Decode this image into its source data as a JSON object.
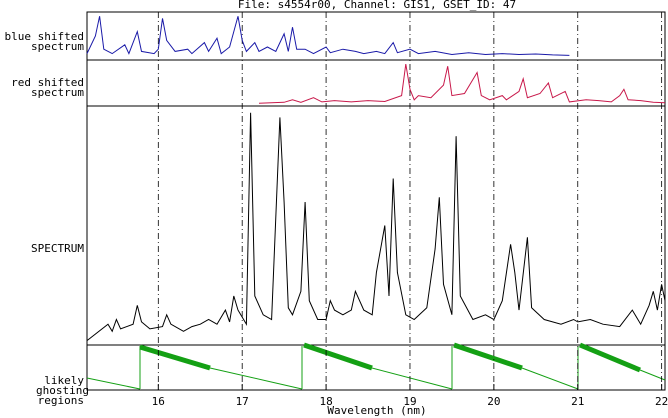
{
  "chart_data": {
    "type": "line",
    "title": "File: s4554r00,   Channel: GIS1, GSET_ID: 47",
    "x_label": "Wavelength (nm)",
    "annotations": [
      "likely ghosting regions"
    ],
    "xlim": [
      15.15,
      22.04
    ],
    "xticks": [
      16,
      17,
      18,
      19,
      20,
      21,
      22
    ],
    "ylim": [
      0,
      100
    ],
    "grid": true,
    "series": [
      {
        "name": "blue shifted spectrum",
        "color": "#1a1aa8",
        "x": [
          15.15,
          15.25,
          15.3,
          15.35,
          15.45,
          15.6,
          15.65,
          15.75,
          15.8,
          15.95,
          16.0,
          16.05,
          16.1,
          16.2,
          16.35,
          16.4,
          16.55,
          16.6,
          16.7,
          16.75,
          16.85,
          16.95,
          17.0,
          17.05,
          17.15,
          17.2,
          17.3,
          17.4,
          17.5,
          17.55,
          17.6,
          17.65,
          17.75,
          17.85,
          18.0,
          18.05,
          18.2,
          18.35,
          18.45,
          18.6,
          18.7,
          18.8,
          18.85,
          19.0,
          19.1,
          19.3,
          19.5,
          19.7,
          19.9,
          20.1,
          20.3,
          20.5,
          20.7,
          20.9
        ],
        "values": [
          10,
          50,
          95,
          20,
          10,
          30,
          10,
          60,
          15,
          10,
          20,
          90,
          40,
          15,
          20,
          10,
          35,
          15,
          45,
          10,
          25,
          95,
          40,
          15,
          35,
          15,
          25,
          15,
          55,
          15,
          70,
          20,
          20,
          10,
          25,
          12,
          20,
          15,
          10,
          15,
          10,
          35,
          12,
          20,
          10,
          15,
          8,
          12,
          8,
          10,
          8,
          9,
          7,
          6
        ]
      },
      {
        "name": "red shifted spectrum",
        "color": "#c8184a",
        "x": [
          17.2,
          17.5,
          17.6,
          17.7,
          17.85,
          17.95,
          18.1,
          18.3,
          18.5,
          18.7,
          18.9,
          18.95,
          19.0,
          19.05,
          19.1,
          19.25,
          19.4,
          19.45,
          19.5,
          19.65,
          19.8,
          19.85,
          19.95,
          20.1,
          20.15,
          20.3,
          20.35,
          20.4,
          20.55,
          20.65,
          20.7,
          20.85,
          20.9,
          21.1,
          21.25,
          21.4,
          21.5,
          21.55,
          21.6,
          21.75,
          21.9,
          22.04
        ],
        "values": [
          2,
          4,
          10,
          4,
          15,
          5,
          8,
          5,
          8,
          6,
          20,
          95,
          35,
          10,
          20,
          15,
          45,
          90,
          20,
          25,
          75,
          20,
          10,
          20,
          10,
          30,
          60,
          15,
          25,
          50,
          15,
          30,
          5,
          10,
          8,
          5,
          20,
          35,
          10,
          8,
          4,
          3
        ]
      },
      {
        "name": "SPECTRUM",
        "color": "#000000",
        "x": [
          15.15,
          15.4,
          15.45,
          15.5,
          15.55,
          15.7,
          15.75,
          15.8,
          15.9,
          16.05,
          16.1,
          16.15,
          16.3,
          16.4,
          16.5,
          16.6,
          16.7,
          16.8,
          16.85,
          16.9,
          16.95,
          17.0,
          17.05,
          17.1,
          17.15,
          17.25,
          17.35,
          17.45,
          17.5,
          17.55,
          17.6,
          17.7,
          17.75,
          17.8,
          17.9,
          18.0,
          18.05,
          18.1,
          18.2,
          18.3,
          18.35,
          18.45,
          18.55,
          18.6,
          18.7,
          18.75,
          18.8,
          18.85,
          18.95,
          19.05,
          19.2,
          19.3,
          19.35,
          19.4,
          19.5,
          19.55,
          19.6,
          19.75,
          19.9,
          20.0,
          20.1,
          20.2,
          20.25,
          20.3,
          20.4,
          20.45,
          20.6,
          20.8,
          20.95,
          21.0,
          21.15,
          21.3,
          21.5,
          21.65,
          21.75,
          21.85,
          21.9,
          21.95,
          22.0,
          22.04
        ],
        "values": [
          1,
          8,
          5,
          10,
          6,
          8,
          16,
          9,
          6,
          7,
          12,
          8,
          5,
          7,
          8,
          10,
          8,
          14,
          9,
          20,
          14,
          11,
          8,
          98,
          20,
          12,
          10,
          96,
          60,
          15,
          12,
          22,
          60,
          18,
          10,
          10,
          18,
          14,
          12,
          14,
          22,
          14,
          12,
          30,
          50,
          20,
          70,
          30,
          12,
          10,
          15,
          40,
          62,
          25,
          12,
          88,
          20,
          10,
          12,
          10,
          18,
          42,
          30,
          14,
          45,
          15,
          10,
          8,
          10,
          9,
          10,
          8,
          7,
          14,
          8,
          16,
          22,
          14,
          25,
          18
        ]
      }
    ]
  }
}
